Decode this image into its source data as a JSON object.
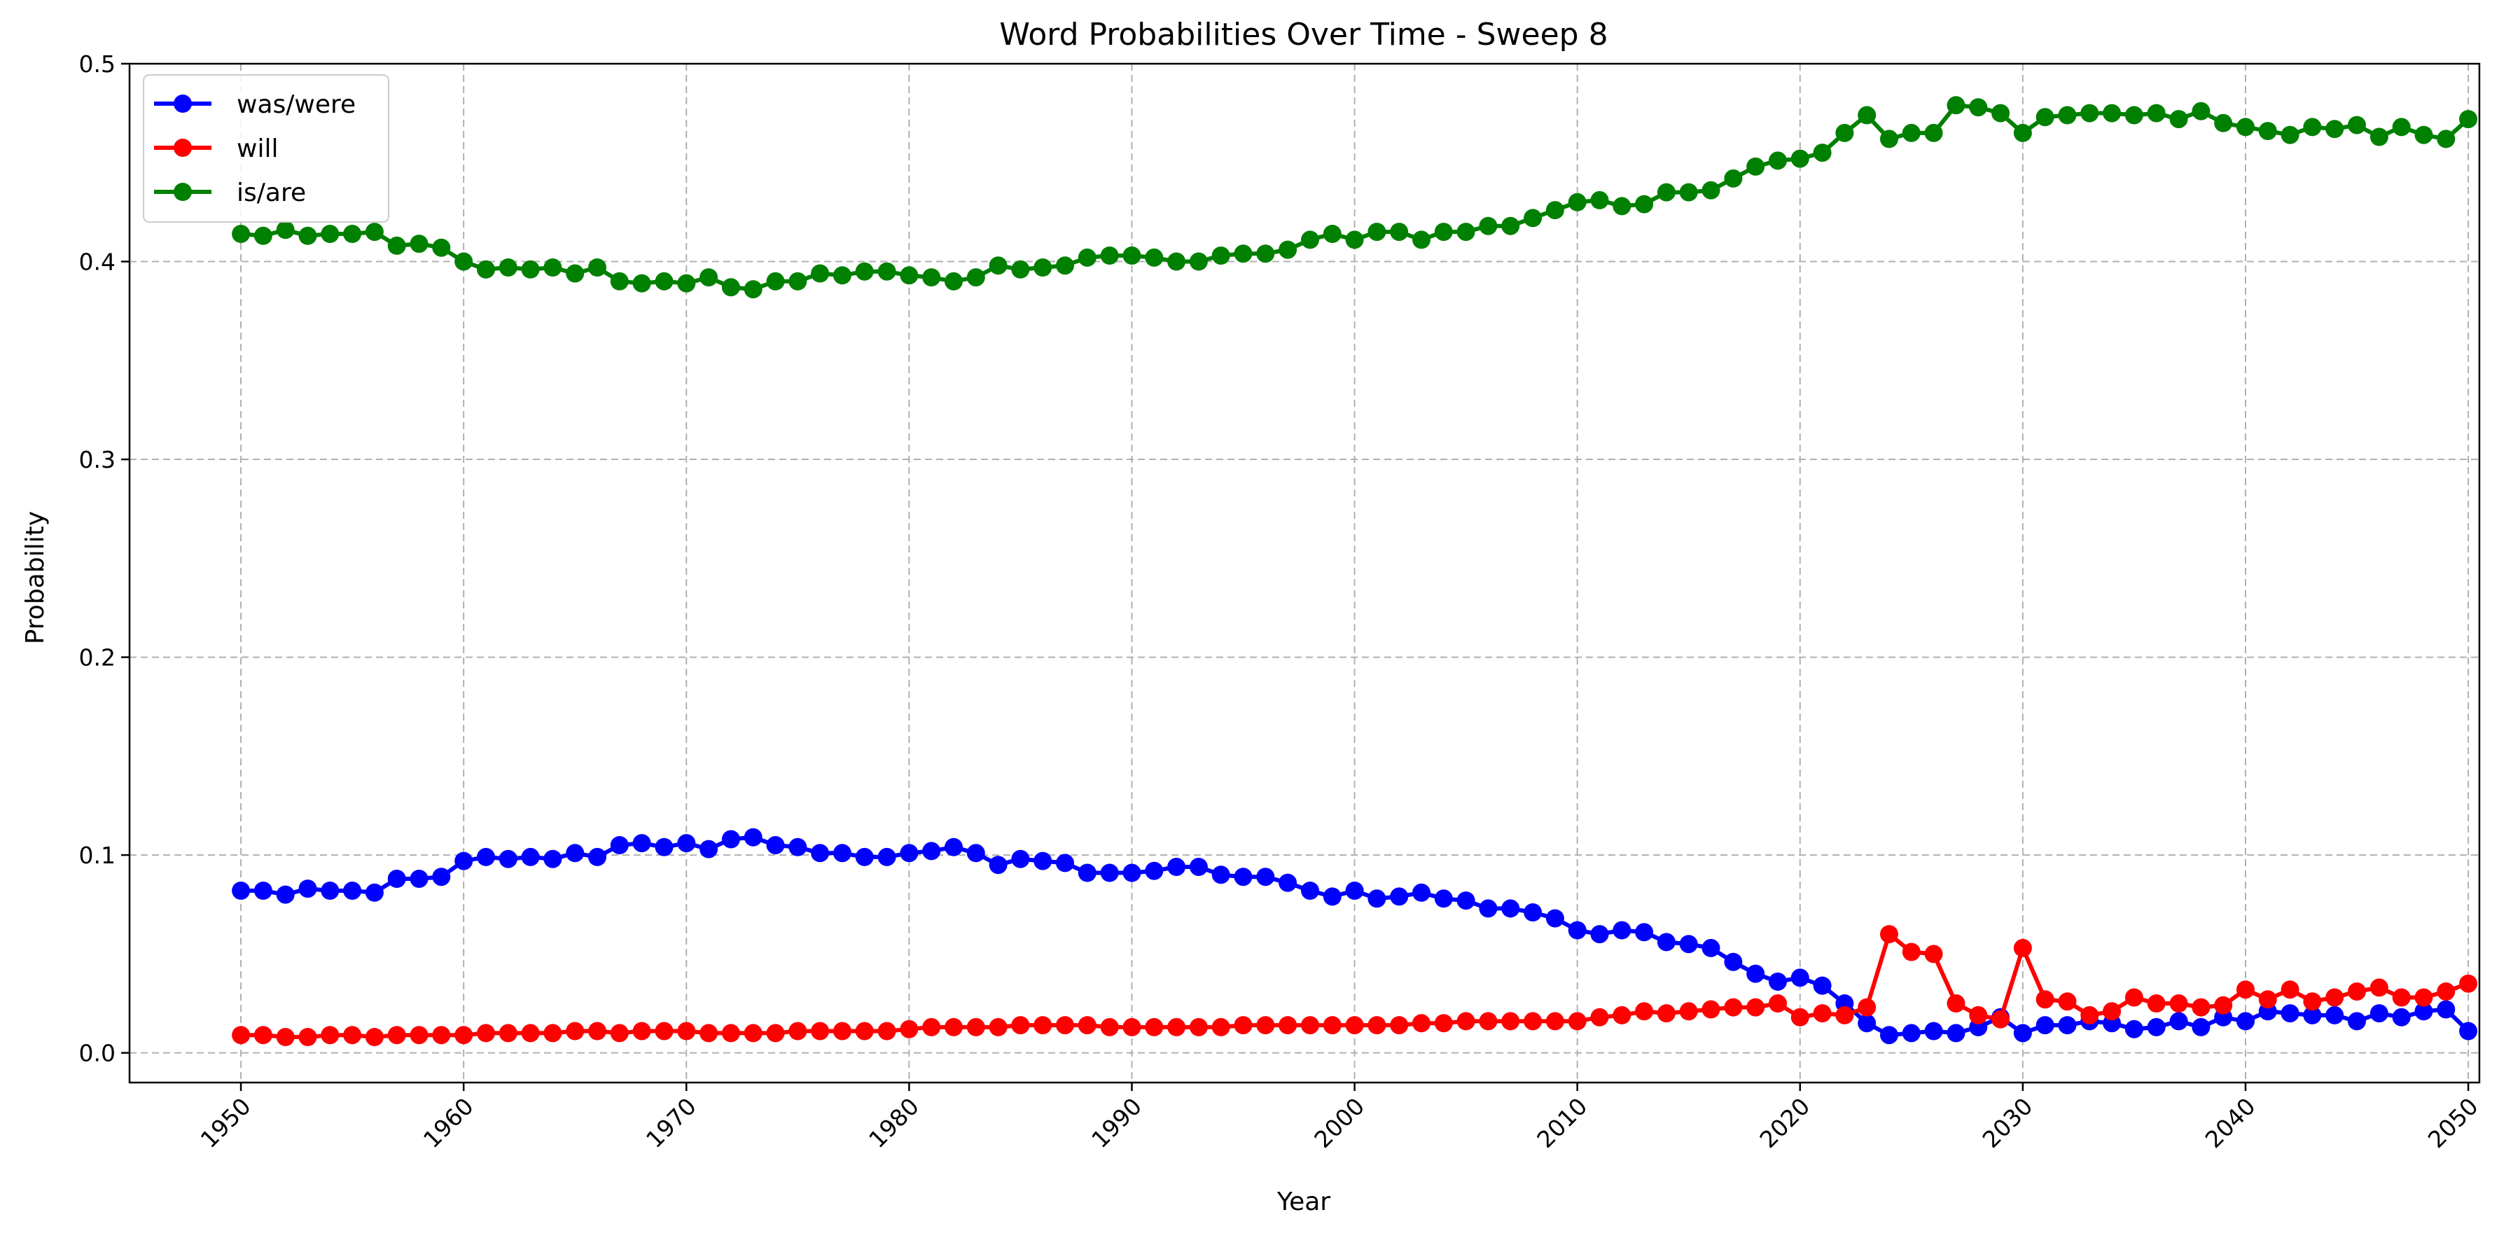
{
  "chart_data": {
    "type": "line",
    "title": "Word Probabilities Over Time - Sweep 8",
    "xlabel": "Year",
    "ylabel": "Probability",
    "xlim": [
      1945,
      2050.5
    ],
    "ylim": [
      -0.015,
      0.5
    ],
    "x_ticks": [
      1950,
      1960,
      1970,
      1980,
      1990,
      2000,
      2010,
      2020,
      2030,
      2040,
      2050
    ],
    "y_ticks": [
      0.0,
      0.1,
      0.2,
      0.3,
      0.4,
      0.5
    ],
    "y_tick_labels": [
      "0.0",
      "0.1",
      "0.2",
      "0.3",
      "0.4",
      "0.5"
    ],
    "grid": true,
    "legend_placement": "top-left",
    "x": [
      1950,
      1951,
      1952,
      1953,
      1954,
      1955,
      1956,
      1957,
      1958,
      1959,
      1960,
      1961,
      1962,
      1963,
      1964,
      1965,
      1966,
      1967,
      1968,
      1969,
      1970,
      1971,
      1972,
      1973,
      1974,
      1975,
      1976,
      1977,
      1978,
      1979,
      1980,
      1981,
      1982,
      1983,
      1984,
      1985,
      1986,
      1987,
      1988,
      1989,
      1990,
      1991,
      1992,
      1993,
      1994,
      1995,
      1996,
      1997,
      1998,
      1999,
      2000,
      2001,
      2002,
      2003,
      2004,
      2005,
      2006,
      2007,
      2008,
      2009,
      2010,
      2011,
      2012,
      2013,
      2014,
      2015,
      2016,
      2017,
      2018,
      2019,
      2020,
      2021,
      2022,
      2023,
      2024,
      2025,
      2026,
      2027,
      2028,
      2029,
      2030,
      2031,
      2032,
      2033,
      2034,
      2035,
      2036,
      2037,
      2038,
      2039,
      2040,
      2041,
      2042,
      2043,
      2044,
      2045,
      2046,
      2047,
      2048,
      2049,
      2050
    ],
    "series": [
      {
        "name": "was/were",
        "color": "#0000ff",
        "values": [
          0.082,
          0.082,
          0.08,
          0.083,
          0.082,
          0.082,
          0.081,
          0.088,
          0.088,
          0.089,
          0.097,
          0.099,
          0.098,
          0.099,
          0.098,
          0.101,
          0.099,
          0.105,
          0.106,
          0.104,
          0.106,
          0.103,
          0.108,
          0.109,
          0.105,
          0.104,
          0.101,
          0.101,
          0.099,
          0.099,
          0.101,
          0.102,
          0.104,
          0.101,
          0.095,
          0.098,
          0.097,
          0.096,
          0.091,
          0.091,
          0.091,
          0.092,
          0.094,
          0.094,
          0.09,
          0.089,
          0.089,
          0.086,
          0.082,
          0.079,
          0.082,
          0.078,
          0.079,
          0.081,
          0.078,
          0.077,
          0.073,
          0.073,
          0.071,
          0.068,
          0.062,
          0.06,
          0.062,
          0.061,
          0.056,
          0.055,
          0.053,
          0.046,
          0.04,
          0.036,
          0.038,
          0.034,
          0.025,
          0.015,
          0.009,
          0.01,
          0.011,
          0.01,
          0.013,
          0.018,
          0.01,
          0.014,
          0.014,
          0.016,
          0.015,
          0.012,
          0.013,
          0.016,
          0.013,
          0.018,
          0.016,
          0.021,
          0.02,
          0.019,
          0.019,
          0.016,
          0.02,
          0.018,
          0.021,
          0.022,
          0.011
        ]
      },
      {
        "name": "will",
        "color": "#ff0000",
        "values": [
          0.009,
          0.009,
          0.008,
          0.008,
          0.009,
          0.009,
          0.008,
          0.009,
          0.009,
          0.009,
          0.009,
          0.01,
          0.01,
          0.01,
          0.01,
          0.011,
          0.011,
          0.01,
          0.011,
          0.011,
          0.011,
          0.01,
          0.01,
          0.01,
          0.01,
          0.011,
          0.011,
          0.011,
          0.011,
          0.011,
          0.012,
          0.013,
          0.013,
          0.013,
          0.013,
          0.014,
          0.014,
          0.014,
          0.014,
          0.013,
          0.013,
          0.013,
          0.013,
          0.013,
          0.013,
          0.014,
          0.014,
          0.014,
          0.014,
          0.014,
          0.014,
          0.014,
          0.014,
          0.015,
          0.015,
          0.016,
          0.016,
          0.016,
          0.016,
          0.016,
          0.016,
          0.018,
          0.019,
          0.021,
          0.02,
          0.021,
          0.022,
          0.023,
          0.023,
          0.025,
          0.018,
          0.02,
          0.019,
          0.023,
          0.06,
          0.051,
          0.05,
          0.025,
          0.019,
          0.017,
          0.053,
          0.027,
          0.026,
          0.019,
          0.021,
          0.028,
          0.025,
          0.025,
          0.023,
          0.024,
          0.032,
          0.027,
          0.032,
          0.026,
          0.028,
          0.031,
          0.033,
          0.028,
          0.028,
          0.031,
          0.035
        ]
      },
      {
        "name": "is/are",
        "color": "#008000",
        "values": [
          0.414,
          0.413,
          0.416,
          0.413,
          0.414,
          0.414,
          0.415,
          0.408,
          0.409,
          0.407,
          0.4,
          0.396,
          0.397,
          0.396,
          0.397,
          0.394,
          0.397,
          0.39,
          0.389,
          0.39,
          0.389,
          0.392,
          0.387,
          0.386,
          0.39,
          0.39,
          0.394,
          0.393,
          0.395,
          0.395,
          0.393,
          0.392,
          0.39,
          0.392,
          0.398,
          0.396,
          0.397,
          0.398,
          0.402,
          0.403,
          0.403,
          0.402,
          0.4,
          0.4,
          0.403,
          0.404,
          0.404,
          0.406,
          0.411,
          0.414,
          0.411,
          0.415,
          0.415,
          0.411,
          0.415,
          0.415,
          0.418,
          0.418,
          0.422,
          0.426,
          0.43,
          0.431,
          0.428,
          0.429,
          0.435,
          0.435,
          0.436,
          0.442,
          0.448,
          0.451,
          0.452,
          0.455,
          0.465,
          0.474,
          0.462,
          0.465,
          0.465,
          0.479,
          0.478,
          0.475,
          0.465,
          0.473,
          0.474,
          0.475,
          0.475,
          0.474,
          0.475,
          0.472,
          0.476,
          0.47,
          0.468,
          0.466,
          0.464,
          0.468,
          0.467,
          0.469,
          0.463,
          0.468,
          0.464,
          0.462,
          0.472
        ]
      }
    ]
  }
}
